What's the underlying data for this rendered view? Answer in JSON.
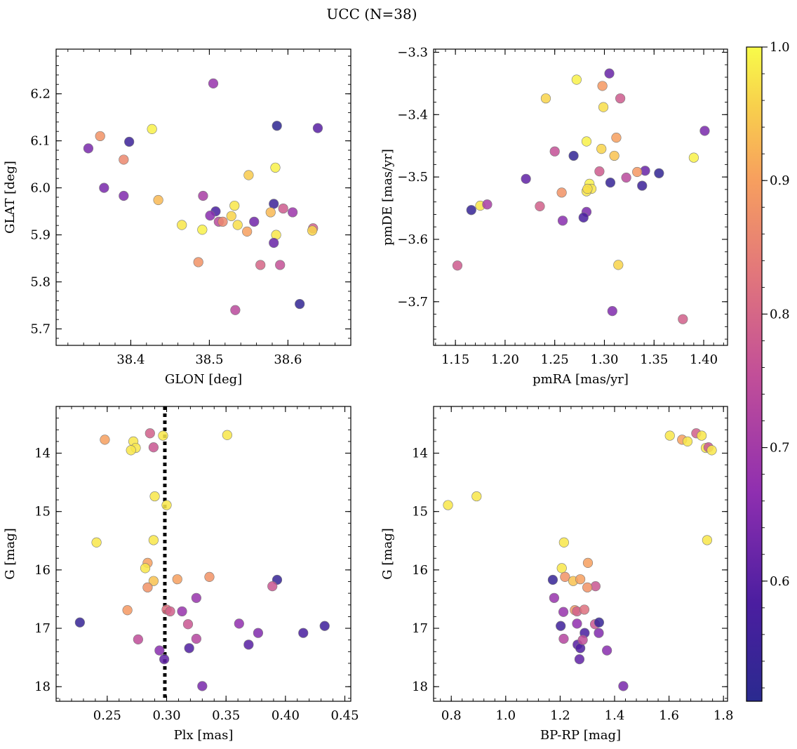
{
  "figure": {
    "title": "UCC (N=38)"
  },
  "colorbar": {
    "colormap": "plasma",
    "range": [
      0.51,
      1.0
    ],
    "ticks": [
      "0.6",
      "0.7",
      "0.8",
      "0.9",
      "1.0"
    ],
    "tick_values": [
      0.6,
      0.7,
      0.8,
      0.9,
      1.0
    ]
  },
  "chart_data": [
    {
      "type": "scatter",
      "xlabel": "GLON [deg]",
      "ylabel": "GLAT [deg]",
      "xlim": [
        38.305,
        38.68
      ],
      "ylim": [
        5.665,
        6.295
      ],
      "y_inverted": false,
      "xticks": [
        38.4,
        38.5,
        38.6
      ],
      "xticklabels": [
        "38.4",
        "38.5",
        "38.6"
      ],
      "xminor": 0.02,
      "yticks": [
        5.7,
        5.8,
        5.9,
        6.0,
        6.1,
        6.2
      ],
      "yticklabels": [
        "5.7",
        "5.8",
        "5.9",
        "6.0",
        "6.1",
        "6.2"
      ],
      "yminor": 0.02,
      "points": [
        {
          "x": 38.505,
          "y": 6.222,
          "c": 0.68
        },
        {
          "x": 38.346,
          "y": 6.084,
          "c": 0.64
        },
        {
          "x": 38.361,
          "y": 6.11,
          "c": 0.88
        },
        {
          "x": 38.398,
          "y": 6.098,
          "c": 0.55
        },
        {
          "x": 38.427,
          "y": 6.125,
          "c": 0.99
        },
        {
          "x": 38.586,
          "y": 6.132,
          "c": 0.52
        },
        {
          "x": 38.638,
          "y": 6.127,
          "c": 0.6
        },
        {
          "x": 38.391,
          "y": 6.06,
          "c": 0.86
        },
        {
          "x": 38.366,
          "y": 6.0,
          "c": 0.64
        },
        {
          "x": 38.391,
          "y": 5.983,
          "c": 0.65
        },
        {
          "x": 38.435,
          "y": 5.974,
          "c": 0.93
        },
        {
          "x": 38.55,
          "y": 6.027,
          "c": 0.95
        },
        {
          "x": 38.584,
          "y": 6.043,
          "c": 0.99
        },
        {
          "x": 38.492,
          "y": 5.983,
          "c": 0.71
        },
        {
          "x": 38.532,
          "y": 5.962,
          "c": 0.98
        },
        {
          "x": 38.582,
          "y": 5.966,
          "c": 0.55
        },
        {
          "x": 38.508,
          "y": 5.95,
          "c": 0.58
        },
        {
          "x": 38.501,
          "y": 5.941,
          "c": 0.66
        },
        {
          "x": 38.528,
          "y": 5.94,
          "c": 0.96
        },
        {
          "x": 38.578,
          "y": 5.948,
          "c": 0.93
        },
        {
          "x": 38.594,
          "y": 5.956,
          "c": 0.78
        },
        {
          "x": 38.606,
          "y": 5.948,
          "c": 0.69
        },
        {
          "x": 38.465,
          "y": 5.921,
          "c": 0.98
        },
        {
          "x": 38.512,
          "y": 5.928,
          "c": 0.74
        },
        {
          "x": 38.517,
          "y": 5.928,
          "c": 0.86
        },
        {
          "x": 38.536,
          "y": 5.921,
          "c": 0.97
        },
        {
          "x": 38.557,
          "y": 5.928,
          "c": 0.63
        },
        {
          "x": 38.491,
          "y": 5.911,
          "c": 0.99
        },
        {
          "x": 38.548,
          "y": 5.907,
          "c": 0.9
        },
        {
          "x": 38.585,
          "y": 5.9,
          "c": 0.98
        },
        {
          "x": 38.632,
          "y": 5.914,
          "c": 0.79
        },
        {
          "x": 38.631,
          "y": 5.909,
          "c": 0.96
        },
        {
          "x": 38.582,
          "y": 5.883,
          "c": 0.62
        },
        {
          "x": 38.486,
          "y": 5.842,
          "c": 0.88
        },
        {
          "x": 38.565,
          "y": 5.836,
          "c": 0.8
        },
        {
          "x": 38.59,
          "y": 5.836,
          "c": 0.76
        },
        {
          "x": 38.533,
          "y": 5.74,
          "c": 0.74
        },
        {
          "x": 38.615,
          "y": 5.753,
          "c": 0.53
        }
      ]
    },
    {
      "type": "scatter",
      "xlabel": "pmRA [mas/yr]",
      "ylabel": "pmDE [mas/yr]",
      "xlim": [
        1.128,
        1.424
      ],
      "ylim": [
        -3.77,
        -3.295
      ],
      "y_inverted": false,
      "xticks": [
        1.15,
        1.2,
        1.25,
        1.3,
        1.35,
        1.4
      ],
      "xticklabels": [
        "1.15",
        "1.20",
        "1.25",
        "1.30",
        "1.35",
        "1.40"
      ],
      "xminor": 0.01,
      "yticks": [
        -3.7,
        -3.6,
        -3.5,
        -3.4,
        -3.3
      ],
      "yticklabels": [
        "−3.7",
        "−3.6",
        "−3.5",
        "−3.4",
        "−3.3"
      ],
      "yminor": 0.02,
      "points": [
        {
          "x": 1.305,
          "y": -3.334,
          "c": 0.62
        },
        {
          "x": 1.272,
          "y": -3.344,
          "c": 0.99
        },
        {
          "x": 1.298,
          "y": -3.354,
          "c": 0.89
        },
        {
          "x": 1.316,
          "y": -3.374,
          "c": 0.78
        },
        {
          "x": 1.241,
          "y": -3.374,
          "c": 0.96
        },
        {
          "x": 1.299,
          "y": -3.388,
          "c": 0.97
        },
        {
          "x": 1.401,
          "y": -3.426,
          "c": 0.64
        },
        {
          "x": 1.312,
          "y": -3.437,
          "c": 0.9
        },
        {
          "x": 1.282,
          "y": -3.443,
          "c": 0.99
        },
        {
          "x": 1.297,
          "y": -3.455,
          "c": 0.96
        },
        {
          "x": 1.25,
          "y": -3.459,
          "c": 0.76
        },
        {
          "x": 1.269,
          "y": -3.466,
          "c": 0.53
        },
        {
          "x": 1.31,
          "y": -3.466,
          "c": 0.94
        },
        {
          "x": 1.39,
          "y": -3.469,
          "c": 0.99
        },
        {
          "x": 1.341,
          "y": -3.49,
          "c": 0.62
        },
        {
          "x": 1.333,
          "y": -3.492,
          "c": 0.89
        },
        {
          "x": 1.295,
          "y": -3.491,
          "c": 0.78
        },
        {
          "x": 1.355,
          "y": -3.494,
          "c": 0.53
        },
        {
          "x": 1.322,
          "y": -3.501,
          "c": 0.74
        },
        {
          "x": 1.221,
          "y": -3.503,
          "c": 0.61
        },
        {
          "x": 1.306,
          "y": -3.509,
          "c": 0.54
        },
        {
          "x": 1.285,
          "y": -3.511,
          "c": 0.99
        },
        {
          "x": 1.338,
          "y": -3.514,
          "c": 0.55
        },
        {
          "x": 1.287,
          "y": -3.519,
          "c": 0.98
        },
        {
          "x": 1.282,
          "y": -3.523,
          "c": 0.98
        },
        {
          "x": 1.257,
          "y": -3.525,
          "c": 0.88
        },
        {
          "x": 1.175,
          "y": -3.546,
          "c": 0.98
        },
        {
          "x": 1.182,
          "y": -3.544,
          "c": 0.71
        },
        {
          "x": 1.235,
          "y": -3.547,
          "c": 0.79
        },
        {
          "x": 1.166,
          "y": -3.553,
          "c": 0.54
        },
        {
          "x": 1.282,
          "y": -3.556,
          "c": 0.64
        },
        {
          "x": 1.279,
          "y": -3.565,
          "c": 0.58
        },
        {
          "x": 1.258,
          "y": -3.57,
          "c": 0.66
        },
        {
          "x": 1.152,
          "y": -3.642,
          "c": 0.78
        },
        {
          "x": 1.314,
          "y": -3.641,
          "c": 0.96
        },
        {
          "x": 1.308,
          "y": -3.715,
          "c": 0.65
        },
        {
          "x": 1.379,
          "y": -3.728,
          "c": 0.79
        },
        {
          "x": 1.283,
          "y": -3.519,
          "c": 0.97
        }
      ]
    },
    {
      "type": "scatter",
      "xlabel": "Plx [mas]",
      "ylabel": "G [mag]",
      "xlim": [
        0.207,
        0.455
      ],
      "ylim": [
        13.2,
        18.25
      ],
      "y_inverted": true,
      "xticks": [
        0.25,
        0.3,
        0.35,
        0.4,
        0.45
      ],
      "xticklabels": [
        "0.25",
        "0.30",
        "0.35",
        "0.40",
        "0.45"
      ],
      "xminor": 0.01,
      "yticks": [
        14,
        15,
        16,
        17,
        18
      ],
      "yticklabels": [
        "14",
        "15",
        "16",
        "17",
        "18"
      ],
      "yminor": 0.2,
      "vline": {
        "x": 0.2985
      },
      "points": [
        {
          "x": 0.248,
          "y": 13.77,
          "c": 0.9
        },
        {
          "x": 0.286,
          "y": 13.66,
          "c": 0.79
        },
        {
          "x": 0.297,
          "y": 13.7,
          "c": 0.98
        },
        {
          "x": 0.351,
          "y": 13.69,
          "c": 0.98
        },
        {
          "x": 0.272,
          "y": 13.8,
          "c": 0.98
        },
        {
          "x": 0.274,
          "y": 13.91,
          "c": 0.98
        },
        {
          "x": 0.289,
          "y": 13.9,
          "c": 0.77
        },
        {
          "x": 0.27,
          "y": 13.95,
          "c": 0.98
        },
        {
          "x": 0.29,
          "y": 14.74,
          "c": 0.98
        },
        {
          "x": 0.3,
          "y": 14.89,
          "c": 0.98
        },
        {
          "x": 0.241,
          "y": 15.53,
          "c": 0.98
        },
        {
          "x": 0.289,
          "y": 15.49,
          "c": 0.98
        },
        {
          "x": 0.284,
          "y": 15.88,
          "c": 0.9
        },
        {
          "x": 0.282,
          "y": 15.97,
          "c": 0.98
        },
        {
          "x": 0.336,
          "y": 16.12,
          "c": 0.88
        },
        {
          "x": 0.289,
          "y": 16.19,
          "c": 0.94
        },
        {
          "x": 0.309,
          "y": 16.16,
          "c": 0.9
        },
        {
          "x": 0.393,
          "y": 16.17,
          "c": 0.54
        },
        {
          "x": 0.284,
          "y": 16.3,
          "c": 0.88
        },
        {
          "x": 0.389,
          "y": 16.28,
          "c": 0.77
        },
        {
          "x": 0.325,
          "y": 16.48,
          "c": 0.68
        },
        {
          "x": 0.267,
          "y": 16.69,
          "c": 0.89
        },
        {
          "x": 0.3,
          "y": 16.68,
          "c": 0.82
        },
        {
          "x": 0.303,
          "y": 16.71,
          "c": 0.79
        },
        {
          "x": 0.313,
          "y": 16.71,
          "c": 0.68
        },
        {
          "x": 0.227,
          "y": 16.9,
          "c": 0.54
        },
        {
          "x": 0.318,
          "y": 16.93,
          "c": 0.77
        },
        {
          "x": 0.361,
          "y": 16.92,
          "c": 0.67
        },
        {
          "x": 0.433,
          "y": 16.96,
          "c": 0.56
        },
        {
          "x": 0.377,
          "y": 17.08,
          "c": 0.65
        },
        {
          "x": 0.415,
          "y": 17.08,
          "c": 0.58
        },
        {
          "x": 0.276,
          "y": 17.19,
          "c": 0.75
        },
        {
          "x": 0.325,
          "y": 17.18,
          "c": 0.73
        },
        {
          "x": 0.369,
          "y": 17.28,
          "c": 0.6
        },
        {
          "x": 0.319,
          "y": 17.34,
          "c": 0.59
        },
        {
          "x": 0.294,
          "y": 17.38,
          "c": 0.66
        },
        {
          "x": 0.298,
          "y": 17.53,
          "c": 0.61
        },
        {
          "x": 0.33,
          "y": 17.99,
          "c": 0.64
        }
      ]
    },
    {
      "type": "scatter",
      "xlabel": "BP-RP [mag]",
      "ylabel": "G [mag]",
      "xlim": [
        0.735,
        1.815
      ],
      "ylim": [
        13.2,
        18.25
      ],
      "y_inverted": true,
      "xticks": [
        0.8,
        1.0,
        1.2,
        1.4,
        1.6,
        1.8
      ],
      "xticklabels": [
        "0.8",
        "1.0",
        "1.2",
        "1.4",
        "1.6",
        "1.8"
      ],
      "xminor": 0.04,
      "yticks": [
        14,
        15,
        16,
        17,
        18
      ],
      "yticklabels": [
        "14",
        "15",
        "16",
        "17",
        "18"
      ],
      "yminor": 0.2,
      "points": [
        {
          "x": 1.603,
          "y": 13.7,
          "c": 0.98
        },
        {
          "x": 1.648,
          "y": 13.77,
          "c": 0.9
        },
        {
          "x": 1.668,
          "y": 13.8,
          "c": 0.98
        },
        {
          "x": 1.7,
          "y": 13.66,
          "c": 0.79
        },
        {
          "x": 1.72,
          "y": 13.7,
          "c": 0.98
        },
        {
          "x": 1.735,
          "y": 13.91,
          "c": 0.98
        },
        {
          "x": 1.745,
          "y": 13.9,
          "c": 0.77
        },
        {
          "x": 1.757,
          "y": 13.95,
          "c": 0.98
        },
        {
          "x": 0.788,
          "y": 14.89,
          "c": 0.98
        },
        {
          "x": 0.893,
          "y": 14.74,
          "c": 0.98
        },
        {
          "x": 1.74,
          "y": 15.49,
          "c": 0.98
        },
        {
          "x": 1.214,
          "y": 15.53,
          "c": 0.98
        },
        {
          "x": 1.206,
          "y": 15.97,
          "c": 0.98
        },
        {
          "x": 1.302,
          "y": 15.88,
          "c": 0.9
        },
        {
          "x": 1.218,
          "y": 16.12,
          "c": 0.88
        },
        {
          "x": 1.248,
          "y": 16.19,
          "c": 0.94
        },
        {
          "x": 1.274,
          "y": 16.16,
          "c": 0.9
        },
        {
          "x": 1.173,
          "y": 16.17,
          "c": 0.54
        },
        {
          "x": 1.33,
          "y": 16.28,
          "c": 0.77
        },
        {
          "x": 1.178,
          "y": 16.48,
          "c": 0.68
        },
        {
          "x": 1.254,
          "y": 16.69,
          "c": 0.89
        },
        {
          "x": 1.262,
          "y": 16.71,
          "c": 0.79
        },
        {
          "x": 1.289,
          "y": 16.68,
          "c": 0.82
        },
        {
          "x": 1.212,
          "y": 16.72,
          "c": 0.68
        },
        {
          "x": 1.262,
          "y": 16.92,
          "c": 0.67
        },
        {
          "x": 1.328,
          "y": 16.93,
          "c": 0.77
        },
        {
          "x": 1.343,
          "y": 16.9,
          "c": 0.54
        },
        {
          "x": 1.202,
          "y": 16.96,
          "c": 0.56
        },
        {
          "x": 1.29,
          "y": 17.08,
          "c": 0.58
        },
        {
          "x": 1.342,
          "y": 17.08,
          "c": 0.65
        },
        {
          "x": 1.213,
          "y": 17.18,
          "c": 0.73
        },
        {
          "x": 1.264,
          "y": 17.28,
          "c": 0.6
        },
        {
          "x": 1.274,
          "y": 17.34,
          "c": 0.59
        },
        {
          "x": 1.372,
          "y": 17.38,
          "c": 0.66
        },
        {
          "x": 1.271,
          "y": 17.53,
          "c": 0.61
        },
        {
          "x": 1.432,
          "y": 17.99,
          "c": 0.64
        },
        {
          "x": 1.3,
          "y": 16.3,
          "c": 0.88
        },
        {
          "x": 1.283,
          "y": 17.2,
          "c": 0.75
        }
      ]
    }
  ]
}
